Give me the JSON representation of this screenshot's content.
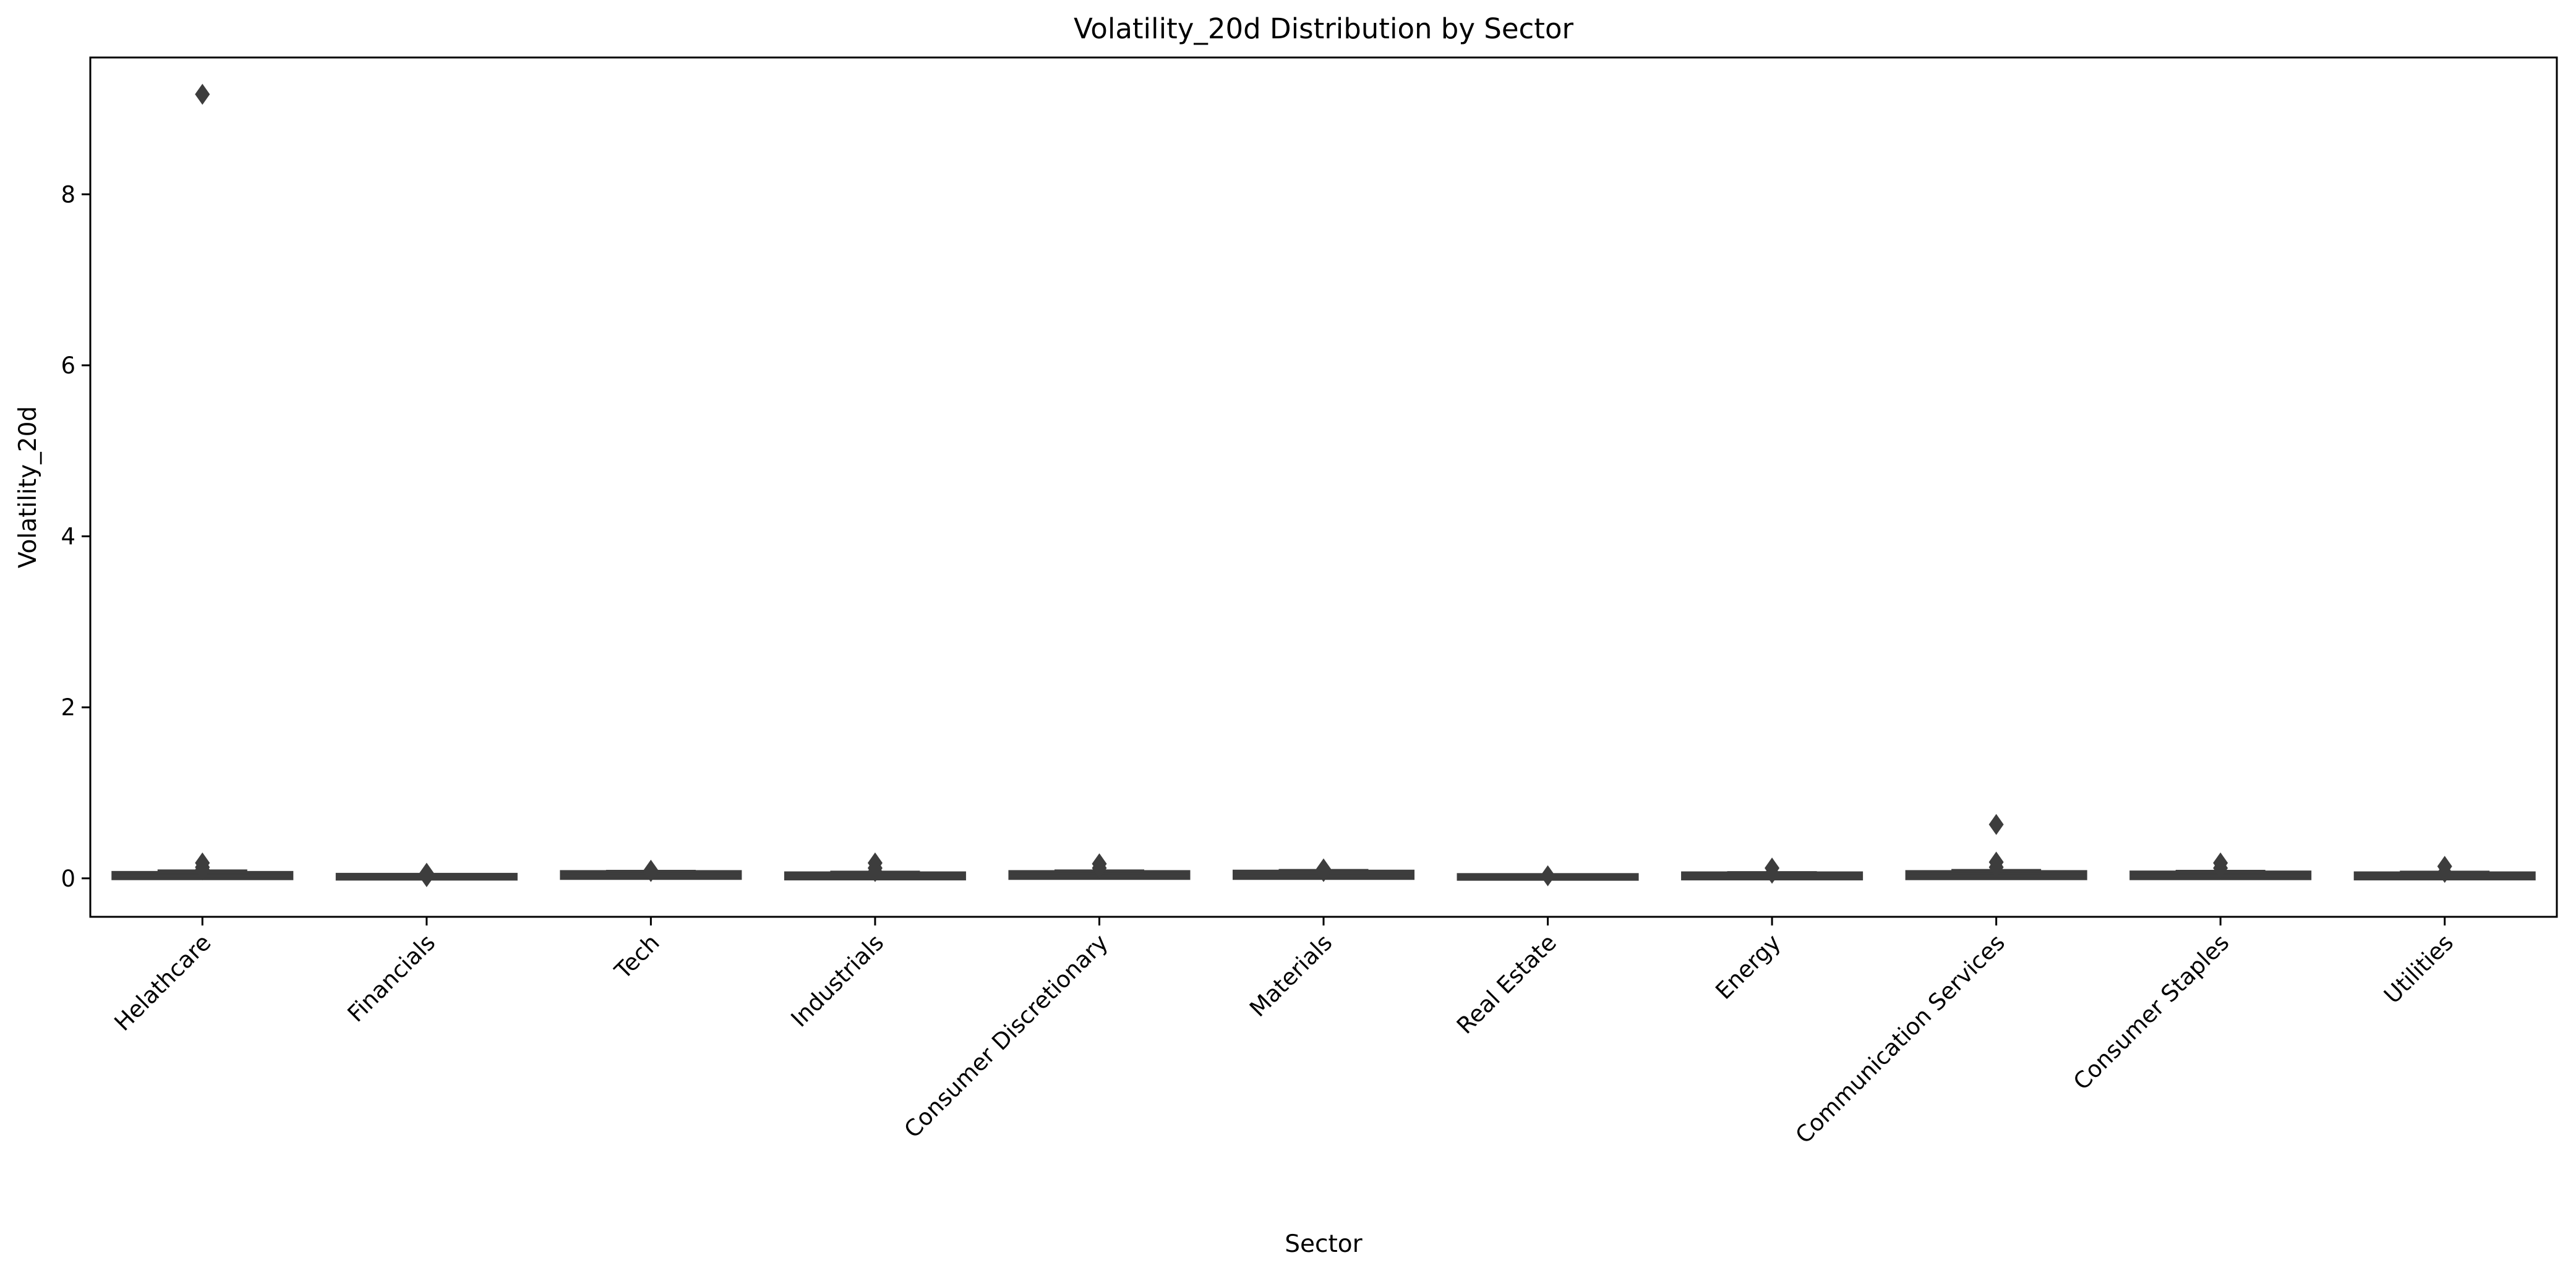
{
  "chart_data": {
    "type": "boxplot",
    "title": "Volatility_20d Distribution by Sector",
    "xlabel": "Sector",
    "ylabel": "Volatility_20d",
    "ylim": [
      -0.45,
      9.6
    ],
    "yticks": [
      0,
      2,
      4,
      6,
      8
    ],
    "grid": false,
    "categories": [
      "Helathcare",
      "Financials",
      "Tech",
      "Industrials",
      "Consumer Discretionary",
      "Materials",
      "Real Estate",
      "Energy",
      "Communication Services",
      "Consumer Staples",
      "Utilities"
    ],
    "boxes": [
      {
        "whisker_low": 0.0,
        "q1": 0.015,
        "median": 0.025,
        "q3": 0.05,
        "whisker_high": 0.09,
        "outliers": [
          9.17,
          0.18,
          0.13,
          0.1
        ]
      },
      {
        "whisker_low": 0.0,
        "q1": 0.01,
        "median": 0.018,
        "q3": 0.028,
        "whisker_high": 0.045,
        "outliers": [
          0.06,
          0.02
        ]
      },
      {
        "whisker_low": 0.0,
        "q1": 0.018,
        "median": 0.03,
        "q3": 0.06,
        "whisker_high": 0.085,
        "outliers": [
          0.095,
          0.08
        ]
      },
      {
        "whisker_low": 0.0,
        "q1": 0.012,
        "median": 0.022,
        "q3": 0.045,
        "whisker_high": 0.075,
        "outliers": [
          0.18,
          0.12,
          0.08
        ]
      },
      {
        "whisker_low": 0.0,
        "q1": 0.018,
        "median": 0.028,
        "q3": 0.06,
        "whisker_high": 0.09,
        "outliers": [
          0.17,
          0.12
        ]
      },
      {
        "whisker_low": 0.0,
        "q1": 0.018,
        "median": 0.03,
        "q3": 0.065,
        "whisker_high": 0.095,
        "outliers": [
          0.11,
          0.08
        ]
      },
      {
        "whisker_low": 0.0,
        "q1": 0.008,
        "median": 0.015,
        "q3": 0.025,
        "whisker_high": 0.04,
        "outliers": [
          0.03
        ]
      },
      {
        "whisker_low": 0.0,
        "q1": 0.012,
        "median": 0.022,
        "q3": 0.045,
        "whisker_high": 0.07,
        "outliers": [
          0.12,
          0.06
        ]
      },
      {
        "whisker_low": 0.0,
        "q1": 0.015,
        "median": 0.03,
        "q3": 0.06,
        "whisker_high": 0.095,
        "outliers": [
          0.63,
          0.19,
          0.13
        ]
      },
      {
        "whisker_low": 0.0,
        "q1": 0.015,
        "median": 0.025,
        "q3": 0.055,
        "whisker_high": 0.085,
        "outliers": [
          0.18,
          0.12
        ]
      },
      {
        "whisker_low": 0.0,
        "q1": 0.012,
        "median": 0.022,
        "q3": 0.045,
        "whisker_high": 0.075,
        "outliers": [
          0.14,
          0.07
        ]
      }
    ],
    "colors": {
      "box": "#3d3d3d",
      "line": "#3d3d3d",
      "outlier": "#3d3d3d"
    }
  }
}
